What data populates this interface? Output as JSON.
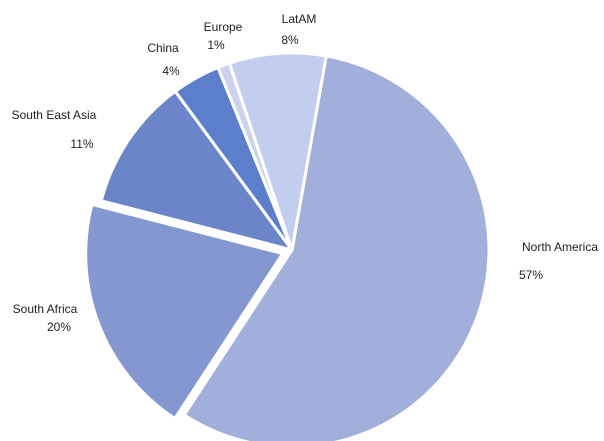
{
  "chart_data": {
    "type": "pie",
    "title": "",
    "legend": "none",
    "slices": [
      {
        "name": "North America",
        "value": 57,
        "label": "57%",
        "color": "#a1afda"
      },
      {
        "name": "South Africa",
        "value": 20,
        "label": "20%",
        "color": "#8497d1"
      },
      {
        "name": "South East Asia",
        "value": 11,
        "label": "11%",
        "color": "#6b86c8"
      },
      {
        "name": "China",
        "value": 4,
        "label": "4%",
        "color": "#5b7fcb"
      },
      {
        "name": "Europe",
        "value": 1,
        "label": "1%",
        "color": "#cdd3ec"
      },
      {
        "name": "LatAM",
        "value": 8,
        "label": "8%",
        "color": "#c3cdee"
      }
    ],
    "start_angle_deg": 10,
    "direction": "clockwise",
    "exploded": [
      "South Africa"
    ]
  }
}
